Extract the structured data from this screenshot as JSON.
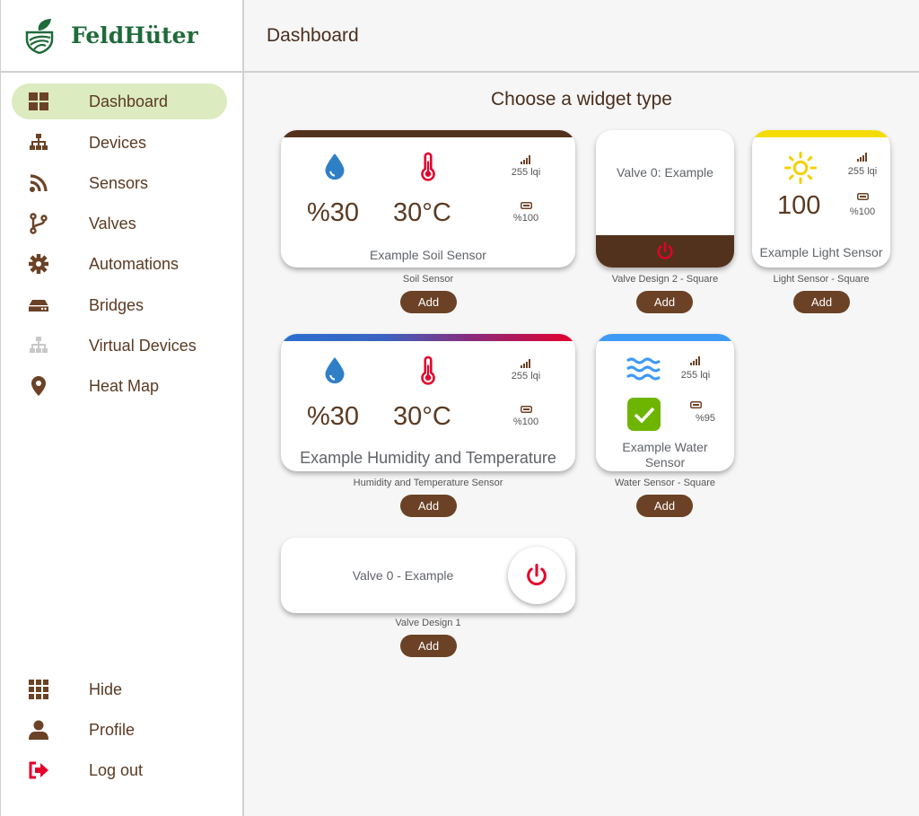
{
  "app": {
    "name": "FeldHüter"
  },
  "sidebar": {
    "items": [
      {
        "label": "Dashboard",
        "icon": "dashboard-icon"
      },
      {
        "label": "Devices",
        "icon": "sitemap-icon"
      },
      {
        "label": "Sensors",
        "icon": "rss-icon"
      },
      {
        "label": "Valves",
        "icon": "branch-icon"
      },
      {
        "label": "Automations",
        "icon": "gear-icon"
      },
      {
        "label": "Bridges",
        "icon": "hdd-icon"
      },
      {
        "label": "Virtual Devices",
        "icon": "sitemap-icon"
      },
      {
        "label": "Heat Map",
        "icon": "map-pin-icon"
      }
    ],
    "bottom": [
      {
        "label": "Hide",
        "icon": "grid-icon"
      },
      {
        "label": "Profile",
        "icon": "user-icon"
      },
      {
        "label": "Log out",
        "icon": "logout-icon"
      }
    ]
  },
  "header": {
    "title": "Dashboard"
  },
  "main": {
    "title": "Choose a widget type",
    "add_label": "Add"
  },
  "widgets": {
    "soil": {
      "humidity": "%30",
      "temp": "30°C",
      "lqi": "255 lqi",
      "battery": "%100",
      "name": "Example Soil Sensor",
      "type": "Soil Sensor"
    },
    "valve2": {
      "name": "Valve 0: Example",
      "type": "Valve Design 2 - Square"
    },
    "light": {
      "value": "100",
      "lqi": "255 lqi",
      "battery": "%100",
      "name": "Example Light Sensor",
      "type": "Light Sensor - Square"
    },
    "ht": {
      "humidity": "%30",
      "temp": "30°C",
      "lqi": "255 lqi",
      "battery": "%100",
      "name": "Example Humidity and Temperature",
      "type": "Humidity and Temperature Sensor"
    },
    "water": {
      "lqi": "255 lqi",
      "battery": "%95",
      "name": "Example Water Sensor",
      "type": "Water Sensor - Square"
    },
    "valve1": {
      "name": "Valve 0 - Example",
      "type": "Valve Design 1"
    }
  },
  "colors": {
    "brown": "#6b4226",
    "dark_brown": "#53321d",
    "active": "#dcebc0",
    "logo": "#1f6b3a",
    "red": "#e4002b",
    "blue": "#2f7fc6",
    "yellow": "#f5dc00",
    "green": "#6db500",
    "water_blue": "#3f9af5"
  }
}
